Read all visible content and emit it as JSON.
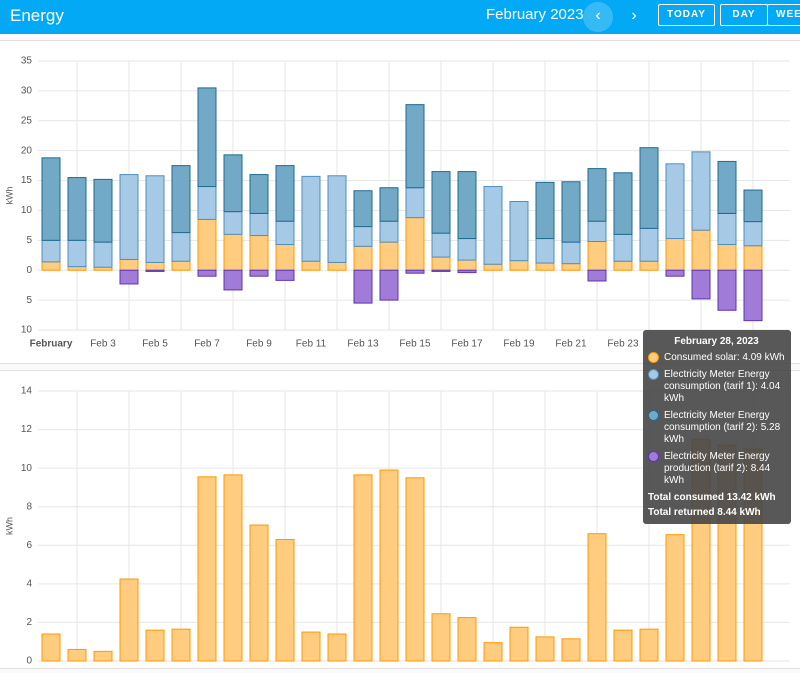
{
  "header": {
    "title": "Energy",
    "period": "February 2023",
    "buttons": [
      "TODAY",
      "DAY",
      "WEEK"
    ]
  },
  "chart_data": [
    {
      "type": "bar",
      "stacked": true,
      "y_label": "kWh",
      "categories": [
        "February",
        null,
        "Feb 3",
        null,
        "Feb 5",
        null,
        "Feb 7",
        null,
        "Feb 9",
        null,
        "Feb 11",
        null,
        "Feb 13",
        null,
        "Feb 15",
        null,
        "Feb 17",
        null,
        "Feb 19",
        null,
        "Feb 21",
        null,
        "Feb 23",
        null,
        null,
        null,
        null,
        null
      ],
      "ylim": [
        -10,
        35
      ],
      "yticks": [
        {
          "value": -10,
          "label": "10"
        },
        {
          "value": -5,
          "label": "5"
        },
        0,
        5,
        10,
        15,
        20,
        25,
        30,
        35
      ],
      "grid": true,
      "series": [
        {
          "name": "Consumed solar",
          "color": "#ff9800",
          "fill": "#ffcc80",
          "values": [
            1.4,
            0.6,
            0.5,
            1.8,
            1.3,
            1.5,
            8.5,
            6.0,
            5.8,
            4.3,
            1.5,
            1.3,
            4.0,
            4.7,
            8.8,
            2.2,
            1.7,
            1.0,
            1.6,
            1.2,
            1.1,
            4.8,
            1.5,
            1.5,
            5.3,
            6.7,
            4.3,
            4.09
          ]
        },
        {
          "name": "Electricity Meter Energy consumption (tarif 1)",
          "color": "#4f8fc0",
          "fill": "#a6c9e6",
          "values": [
            3.6,
            4.4,
            4.2,
            14.2,
            14.5,
            4.8,
            5.5,
            3.8,
            3.7,
            3.9,
            14.2,
            14.5,
            3.3,
            3.5,
            5.0,
            4.0,
            3.6,
            13.0,
            9.9,
            4.1,
            3.6,
            3.4,
            4.5,
            5.5,
            12.5,
            13.1,
            5.2,
            4.04
          ]
        },
        {
          "name": "Electricity Meter Energy consumption (tarif 2)",
          "color": "#1f6a90",
          "fill": "#72a9c6",
          "values": [
            13.8,
            10.5,
            10.5,
            0,
            0,
            11.2,
            16.5,
            9.5,
            6.5,
            9.3,
            0,
            0,
            6.0,
            5.6,
            13.9,
            10.3,
            11.2,
            0,
            0,
            9.4,
            10.1,
            8.8,
            10.3,
            13.5,
            0,
            0,
            8.7,
            5.28
          ]
        },
        {
          "name": "Electricity Meter Energy production (tarif 2)",
          "color": "#5e35b1",
          "fill": "#a07bd8",
          "negative": true,
          "values": [
            0,
            0,
            0,
            2.3,
            0.2,
            0,
            1.0,
            3.3,
            1.0,
            1.7,
            0,
            0,
            5.5,
            5.0,
            0.5,
            0.2,
            0.4,
            0,
            0,
            0,
            0,
            1.8,
            0,
            0,
            1.0,
            4.8,
            6.7,
            8.44
          ]
        }
      ]
    },
    {
      "type": "bar",
      "y_label": "kWh",
      "values": [
        1.4,
        0.6,
        0.5,
        4.25,
        1.6,
        1.65,
        9.55,
        9.65,
        7.05,
        6.3,
        1.5,
        1.4,
        9.65,
        9.9,
        9.5,
        2.45,
        2.25,
        0.95,
        1.75,
        1.25,
        1.15,
        6.6,
        1.6,
        1.65,
        6.55,
        11.5,
        11.2,
        11.0
      ],
      "color": "#ff9800",
      "fill": "#ffcc80",
      "ylim": [
        0,
        14
      ],
      "yticks": [
        0,
        2,
        4,
        6,
        8,
        10,
        12,
        14
      ],
      "grid": true
    }
  ],
  "tooltip": {
    "title": "February 28, 2023",
    "items": [
      "Consumed solar: 4.09 kWh",
      "Electricity Meter Energy consumption (tarif 1): 4.04 kWh",
      "Electricity Meter Energy consumption (tarif 2): 5.28 kWh",
      "Electricity Meter Energy production (tarif 2): 8.44 kWh"
    ],
    "total_consumed": "Total consumed 13.42 kWh",
    "total_returned": "Total returned 8.44 kWh"
  }
}
